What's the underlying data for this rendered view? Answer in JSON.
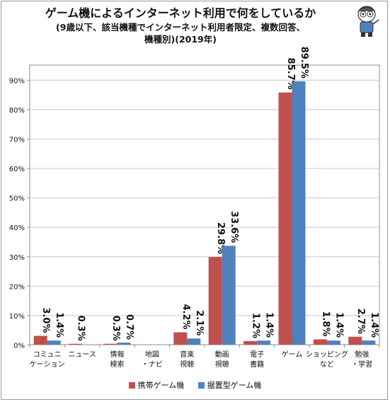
{
  "title": {
    "main": "ゲーム機によるインターネット利用で何をしているか",
    "sub_line1": "(9歳以下、該当機種でインターネット利用者限定、複数回答、",
    "sub_line2": "機種別)(2019年)"
  },
  "colors": {
    "series1": "#c0504d",
    "series2": "#4f81bd"
  },
  "chart_data": {
    "type": "bar",
    "ylim": [
      0,
      95
    ],
    "yticks": [
      0,
      10,
      20,
      30,
      40,
      50,
      60,
      70,
      80,
      90
    ],
    "ytick_labels": [
      "0%",
      "10%",
      "20%",
      "30%",
      "40%",
      "50%",
      "60%",
      "70%",
      "80%",
      "90%"
    ],
    "grid": true,
    "legend_position": "bottom",
    "categories": [
      [
        "コミュニ",
        "ケーション"
      ],
      [
        "ニュース"
      ],
      [
        "情報",
        "検索"
      ],
      [
        "地図",
        "・ナビ"
      ],
      [
        "音楽",
        "視聴"
      ],
      [
        "動画",
        "視聴"
      ],
      [
        "電子",
        "書籍"
      ],
      [
        "ゲーム"
      ],
      [
        "ショッピング",
        "など"
      ],
      [
        "勉強",
        "・学習"
      ]
    ],
    "series": [
      {
        "name": "携帯ゲーム機",
        "values": [
          3.0,
          0.3,
          0.3,
          0.0,
          4.2,
          29.8,
          1.2,
          85.7,
          1.8,
          2.7
        ],
        "labels": [
          "3.0%",
          "0.3%",
          "0.3%",
          "",
          "4.2%",
          "29.8%",
          "1.2%",
          "85.7%",
          "1.8%",
          "2.7%"
        ]
      },
      {
        "name": "据置型ゲーム機",
        "values": [
          1.4,
          0.0,
          0.7,
          0.0,
          2.1,
          33.6,
          1.4,
          89.5,
          1.4,
          1.4
        ],
        "labels": [
          "1.4%",
          "",
          "0.7%",
          "",
          "2.1%",
          "33.6%",
          "1.4%",
          "89.5%",
          "1.4%",
          "1.4%"
        ]
      }
    ]
  }
}
